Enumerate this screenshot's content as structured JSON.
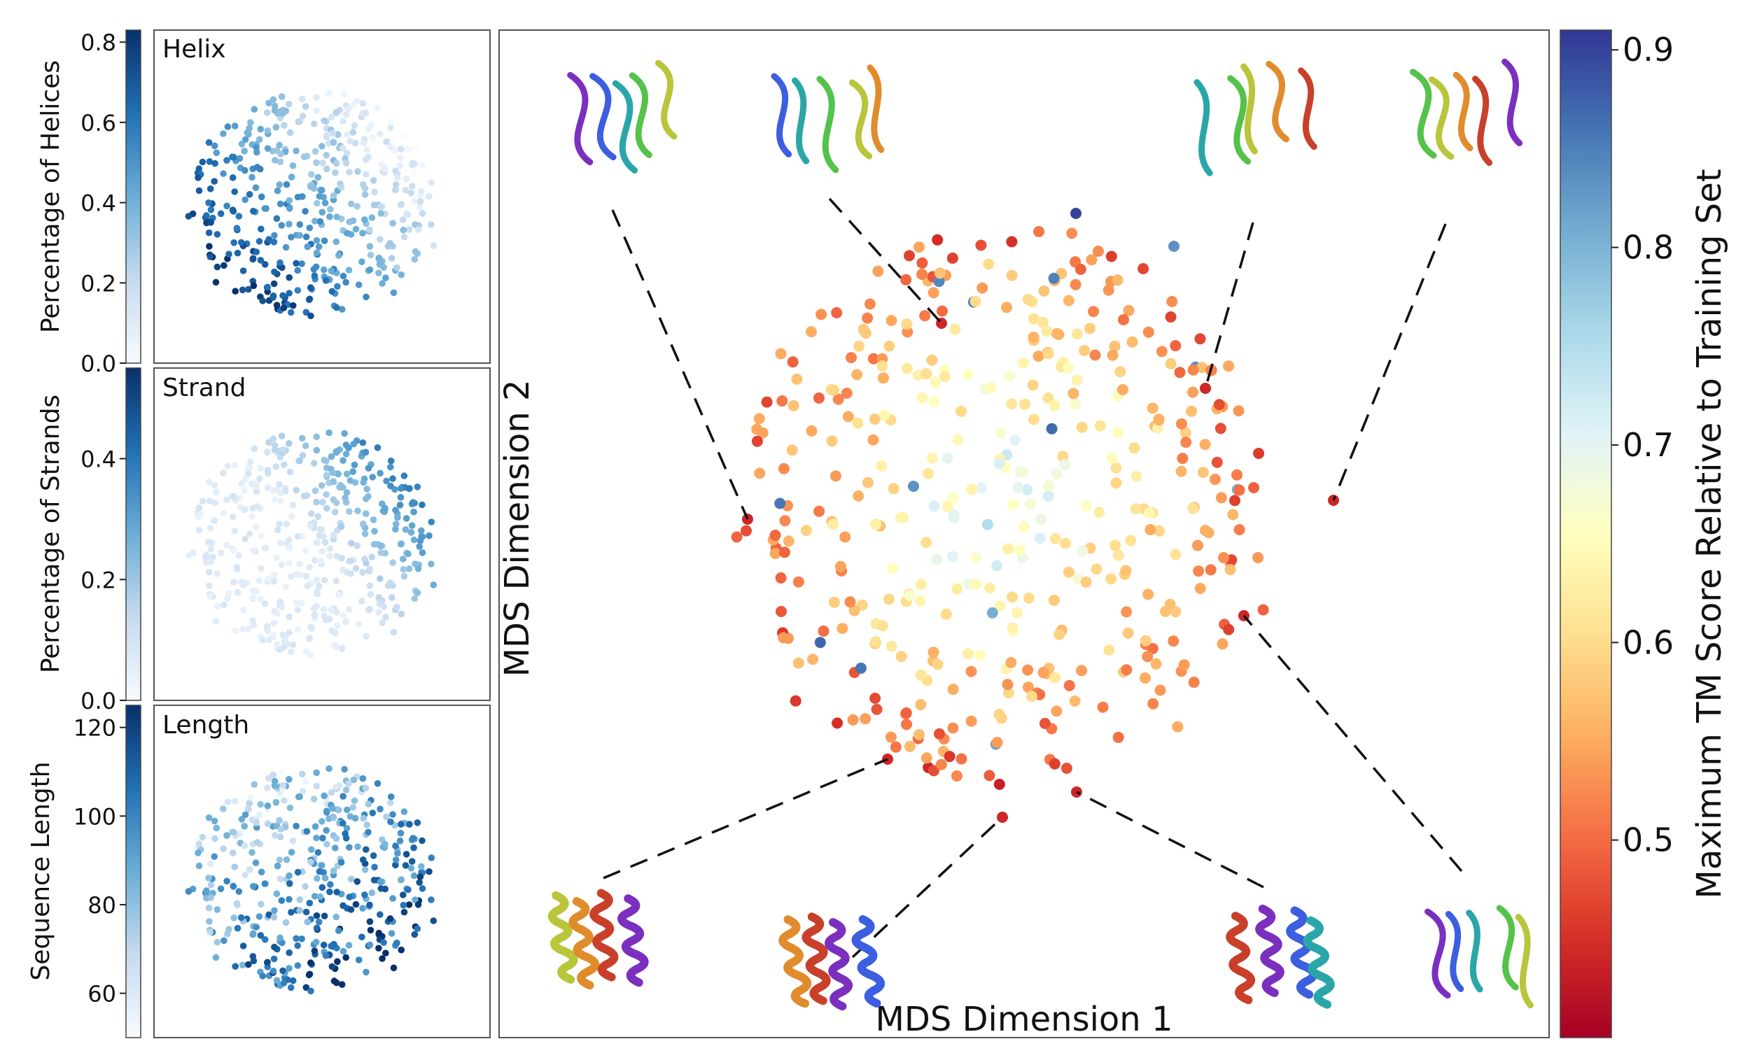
{
  "chart_data": [
    {
      "type": "scatter",
      "panel": "helix",
      "title": "Helix",
      "colorbar_label": "Percentage of Helices",
      "colorbar_ticks": [
        "0.0",
        "0.2",
        "0.4",
        "0.6",
        "0.8"
      ],
      "colorbar_range": [
        0.0,
        0.83
      ],
      "colormap": "Blues",
      "gradient_trend": "values rise toward the lower-left; lighter toward the upper-right"
    },
    {
      "type": "scatter",
      "panel": "strand",
      "title": "Strand",
      "colorbar_label": "Percentage of Strands",
      "colorbar_ticks": [
        "0.0",
        "0.2",
        "0.4"
      ],
      "colorbar_range": [
        0.0,
        0.55
      ],
      "colormap": "Blues",
      "gradient_trend": "values rise toward the upper-right; pale elsewhere"
    },
    {
      "type": "scatter",
      "panel": "length",
      "title": "Length",
      "colorbar_label": "Sequence Length",
      "colorbar_ticks": [
        "60",
        "80",
        "100",
        "120"
      ],
      "colorbar_range": [
        50,
        125
      ],
      "colormap": "Blues",
      "gradient_trend": "mixed; darker toward the lower-right and left edge"
    },
    {
      "type": "scatter",
      "panel": "main",
      "xlabel": "MDS Dimension 1",
      "ylabel": "MDS Dimension 2",
      "colorbar_label": "Maximum TM Score Relative to Training Set",
      "colorbar_ticks": [
        "0.5",
        "0.6",
        "0.7",
        "0.8",
        "0.9"
      ],
      "colorbar_range": [
        0.4,
        0.91
      ],
      "colormap": "RdYlBu",
      "point_count_approx": 450,
      "distribution": "roughly circular cloud; low scores (red) on the rim, higher scores (yellow/white) in the center, a few blue outliers",
      "inset_structures": [
        {
          "id": "top-1",
          "kind": "mixed alpha/beta fold",
          "position_word": "top-left"
        },
        {
          "id": "top-2",
          "kind": "mixed alpha/beta fold",
          "position_word": "top-center-left"
        },
        {
          "id": "top-3",
          "kind": "beta-barrel fold",
          "position_word": "top-center-right"
        },
        {
          "id": "top-4",
          "kind": "beta-sheet fold",
          "position_word": "top-right"
        },
        {
          "id": "bottom-1",
          "kind": "helical bundle",
          "position_word": "bottom-left"
        },
        {
          "id": "bottom-2",
          "kind": "helical bundle",
          "position_word": "bottom-center-left"
        },
        {
          "id": "bottom-3",
          "kind": "helical bundle",
          "position_word": "bottom-center-right"
        },
        {
          "id": "bottom-4",
          "kind": "alpha/beta fold",
          "position_word": "bottom-right"
        }
      ]
    }
  ]
}
